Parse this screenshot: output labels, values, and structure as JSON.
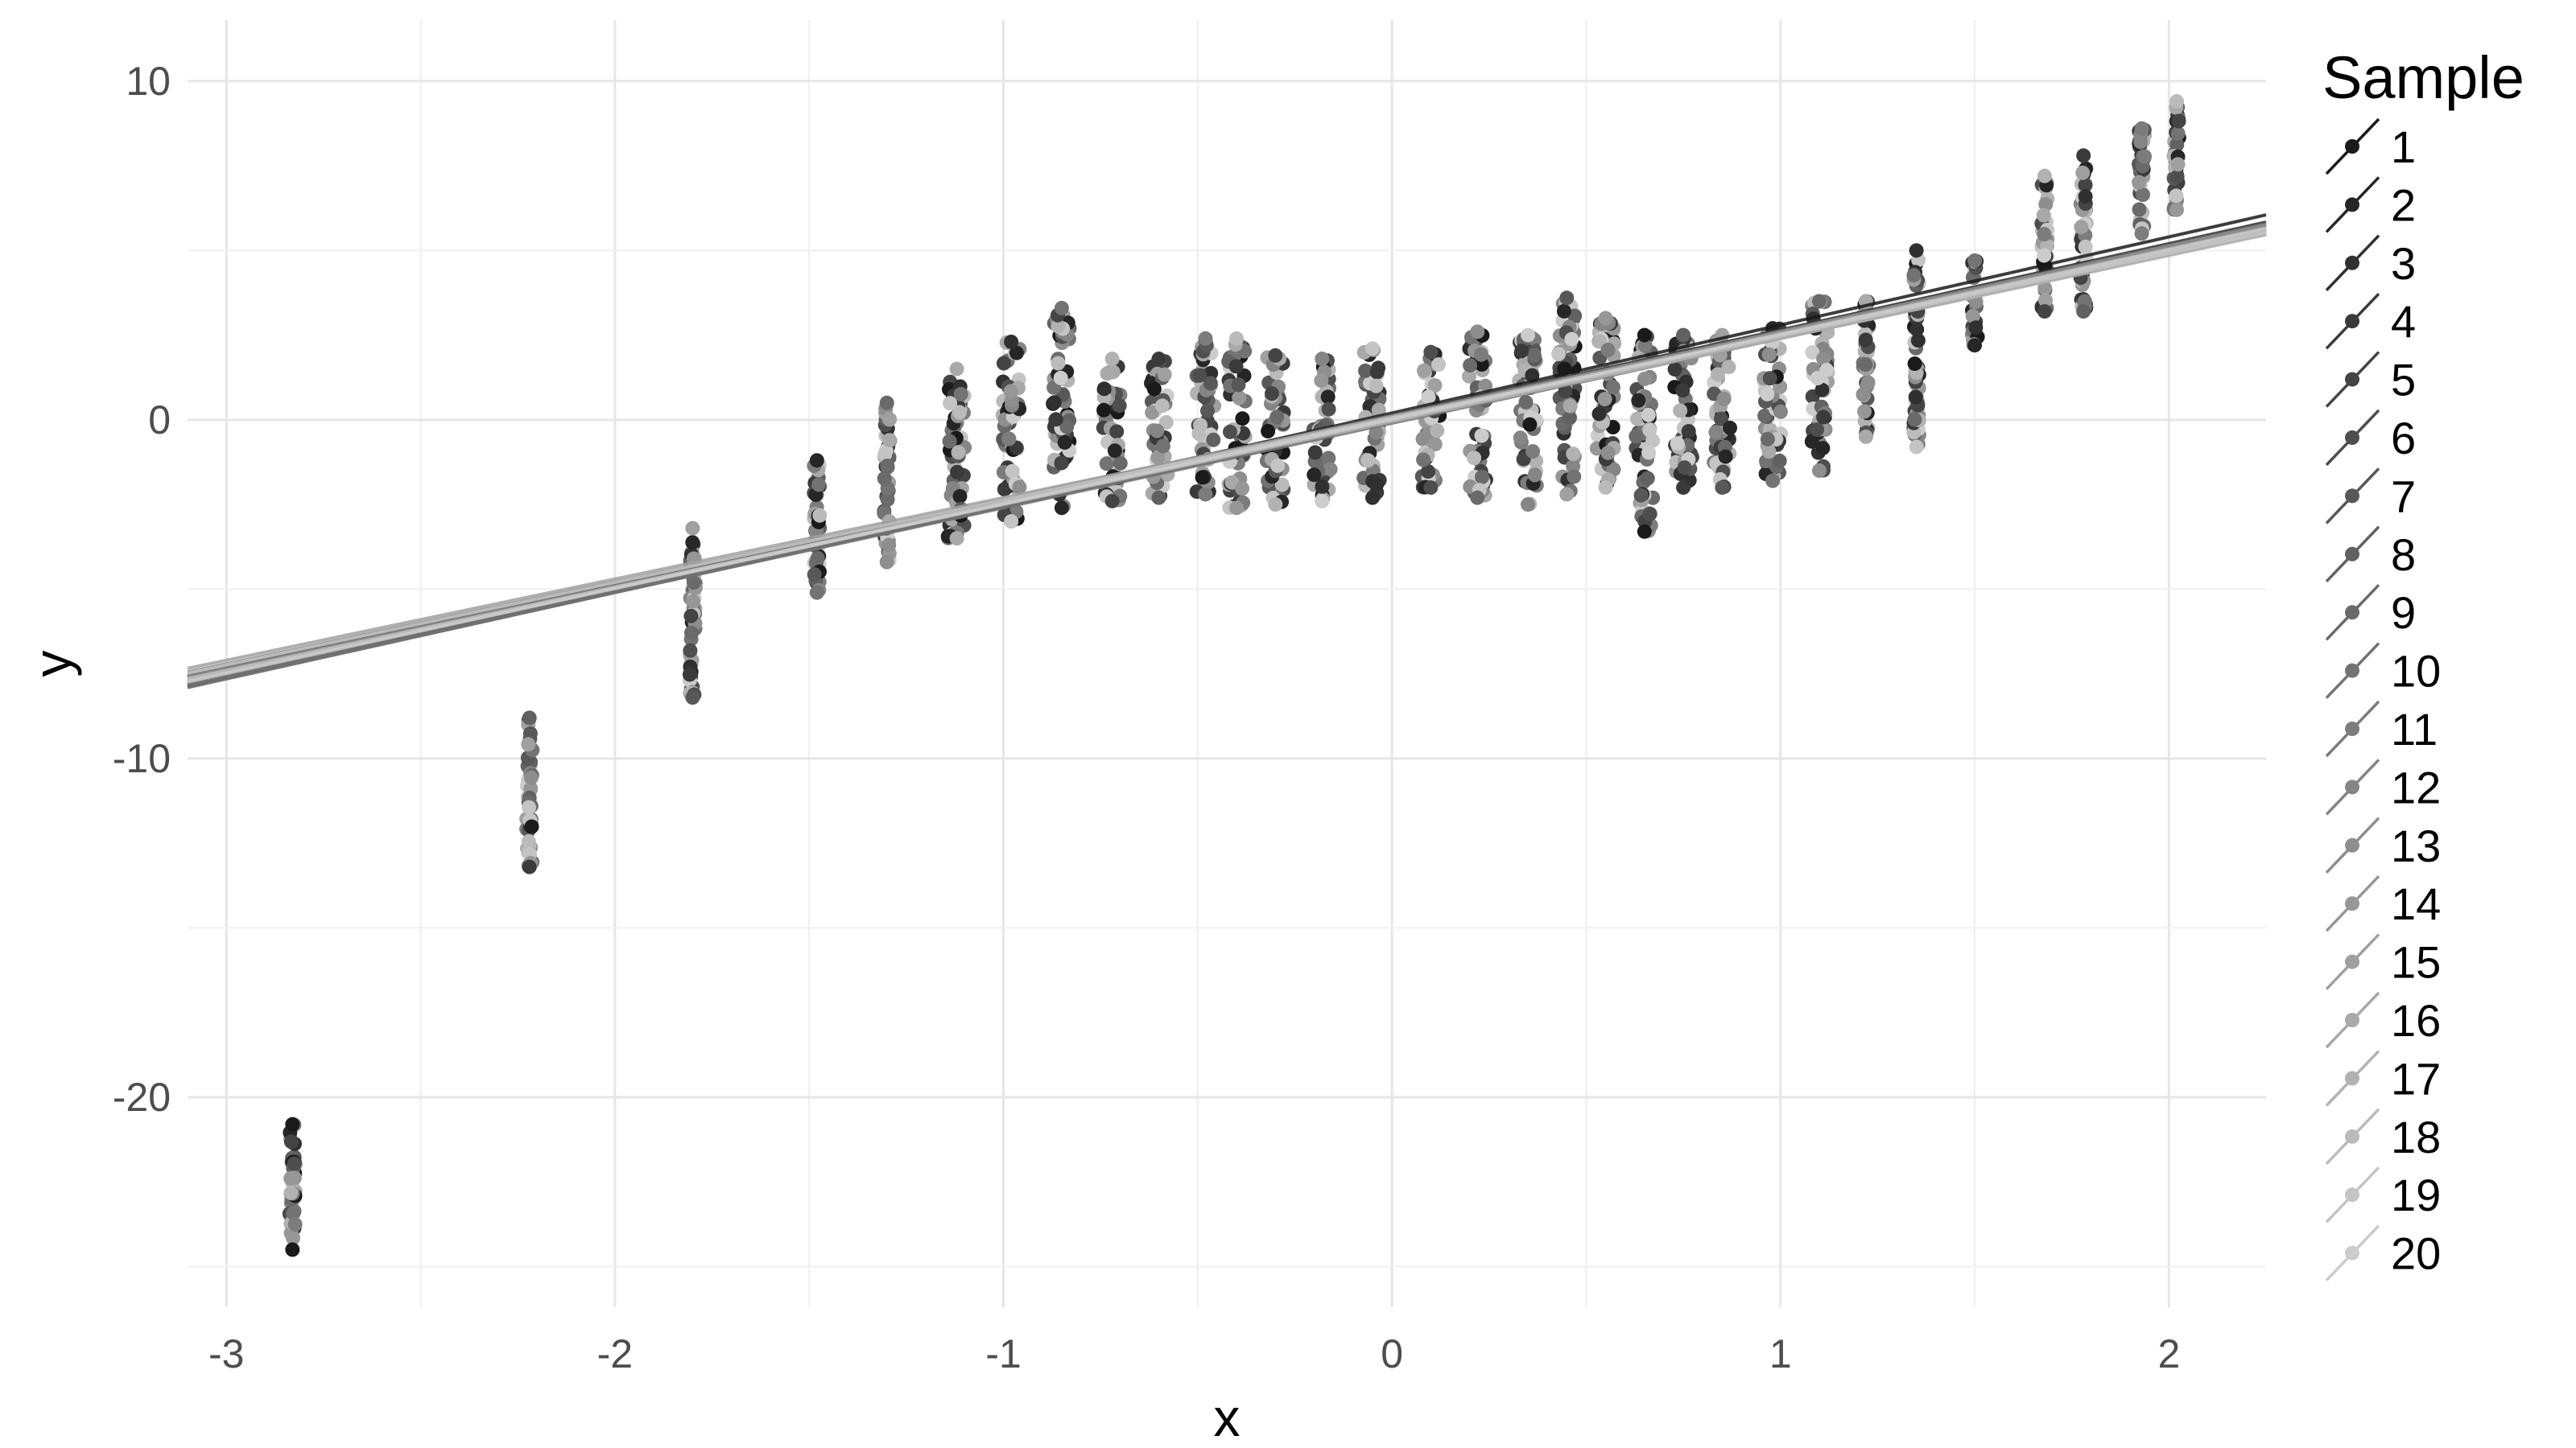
{
  "chart_data": {
    "type": "scatter",
    "title": "",
    "xlabel": "x",
    "ylabel": "y",
    "xlim": [
      -3.1,
      2.25
    ],
    "ylim": [
      -26.2,
      11.8
    ],
    "x_ticks": [
      -3,
      -2,
      -1,
      0,
      1,
      2
    ],
    "y_ticks": [
      -20,
      -10,
      0,
      10
    ],
    "x_tick_labels": [
      "-3",
      "-2",
      "-1",
      "0",
      "1",
      "2"
    ],
    "y_tick_labels": [
      "-20",
      "-10",
      "0",
      "10"
    ],
    "grid": true,
    "legend_placement": "right",
    "legend": {
      "title": "Sample",
      "entries": [
        "1",
        "2",
        "3",
        "4",
        "5",
        "6",
        "7",
        "8",
        "9",
        "10",
        "11",
        "12",
        "13",
        "14",
        "15",
        "16",
        "17",
        "18",
        "19",
        "20"
      ],
      "colors": [
        "#1a1a1a",
        "#262626",
        "#303030",
        "#3a3a3a",
        "#444444",
        "#4e4e4e",
        "#585858",
        "#616161",
        "#6a6a6a",
        "#737373",
        "#7c7c7c",
        "#858585",
        "#8e8e8e",
        "#979797",
        "#a0a0a0",
        "#a9a9a9",
        "#b2b2b2",
        "#bbbbbb",
        "#c4c4c4",
        "#cccccc"
      ]
    },
    "x_clusters": [
      -2.83,
      -2.22,
      -1.8,
      -1.48,
      -1.3,
      -1.12,
      -0.98,
      -0.85,
      -0.72,
      -0.6,
      -0.48,
      -0.4,
      -0.3,
      -0.18,
      -0.05,
      0.1,
      0.22,
      0.35,
      0.45,
      0.55,
      0.65,
      0.75,
      0.85,
      0.98,
      1.1,
      1.22,
      1.35,
      1.5,
      1.68,
      1.78,
      1.93,
      2.02
    ],
    "cluster_y_ranges": [
      [
        -24.5,
        -20.8
      ],
      [
        -13.2,
        -8.8
      ],
      [
        -8.2,
        -3.2
      ],
      [
        -5.1,
        -1.2
      ],
      [
        -4.2,
        0.5
      ],
      [
        -3.5,
        1.5
      ],
      [
        -3.0,
        2.3
      ],
      [
        -2.6,
        3.3
      ],
      [
        -2.4,
        1.8
      ],
      [
        -2.3,
        1.8
      ],
      [
        -2.2,
        2.4
      ],
      [
        -2.6,
        2.4
      ],
      [
        -2.5,
        1.9
      ],
      [
        -2.4,
        1.8
      ],
      [
        -2.3,
        2.1
      ],
      [
        -2.0,
        2.0
      ],
      [
        -2.3,
        2.6
      ],
      [
        -2.5,
        2.5
      ],
      [
        -2.2,
        3.6
      ],
      [
        -2.0,
        3.0
      ],
      [
        -3.3,
        2.5
      ],
      [
        -2.0,
        2.5
      ],
      [
        -2.0,
        2.5
      ],
      [
        -1.8,
        2.7
      ],
      [
        -1.5,
        3.5
      ],
      [
        -0.5,
        3.5
      ],
      [
        -0.8,
        5.0
      ],
      [
        2.2,
        4.7
      ],
      [
        3.2,
        7.2
      ],
      [
        3.2,
        7.8
      ],
      [
        5.5,
        8.6
      ],
      [
        6.2,
        9.4
      ]
    ],
    "regression_lines": [
      {
        "intercept": 0.2,
        "slope": 2.6
      },
      {
        "intercept": 0.05,
        "slope": 2.5
      },
      {
        "intercept": 0.1,
        "slope": 2.55
      },
      {
        "intercept": 0.0,
        "slope": 2.45
      },
      {
        "intercept": 0.15,
        "slope": 2.5
      },
      {
        "intercept": -0.05,
        "slope": 2.52
      },
      {
        "intercept": 0.1,
        "slope": 2.48
      },
      {
        "intercept": 0.0,
        "slope": 2.55
      },
      {
        "intercept": 0.05,
        "slope": 2.42
      },
      {
        "intercept": -0.1,
        "slope": 2.5
      },
      {
        "intercept": 0.12,
        "slope": 2.47
      },
      {
        "intercept": 0.0,
        "slope": 2.5
      },
      {
        "intercept": 0.08,
        "slope": 2.53
      },
      {
        "intercept": -0.02,
        "slope": 2.45
      },
      {
        "intercept": 0.1,
        "slope": 2.4
      },
      {
        "intercept": 0.05,
        "slope": 2.5
      },
      {
        "intercept": -0.05,
        "slope": 2.45
      },
      {
        "intercept": 0.0,
        "slope": 2.47
      },
      {
        "intercept": 0.06,
        "slope": 2.43
      },
      {
        "intercept": 0.02,
        "slope": 2.5
      }
    ]
  }
}
